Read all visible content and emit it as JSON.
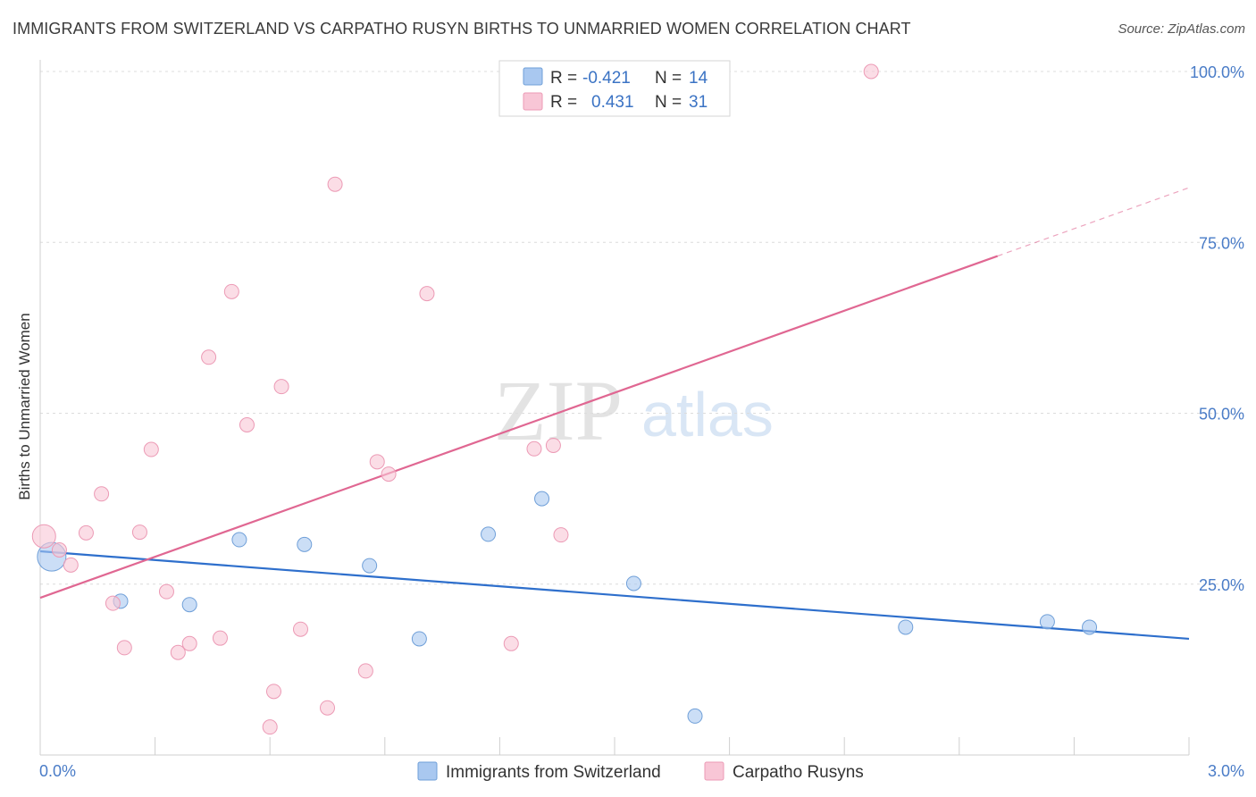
{
  "title": "IMMIGRANTS FROM SWITZERLAND VS CARPATHO RUSYN BIRTHS TO UNMARRIED WOMEN CORRELATION CHART",
  "source": "Source: ZipAtlas.com",
  "watermark": {
    "zip": "ZIP",
    "atlas": "atlas"
  },
  "legend": {
    "rows": [
      {
        "r_label": "R =",
        "r_value": "-0.421",
        "n_label": "N =",
        "n_value": "14"
      },
      {
        "r_label": "R =",
        "r_value": "0.431",
        "n_label": "N =",
        "n_value": "31"
      }
    ]
  },
  "bottom_legend": [
    "Immigrants from Switzerland",
    "Carpatho Rusyns"
  ],
  "chart_data": {
    "type": "scatter",
    "title": "IMMIGRANTS FROM SWITZERLAND VS CARPATHO RUSYN BIRTHS TO UNMARRIED WOMEN CORRELATION CHART",
    "xlabel": "",
    "ylabel": "Births to Unmarried Women",
    "xlim": [
      0,
      3.0
    ],
    "ylim": [
      0,
      100
    ],
    "x_tick_labels": [
      "0.0%",
      "3.0%"
    ],
    "y_ticks": [
      25,
      50,
      75,
      100
    ],
    "y_tick_labels": [
      "25.0%",
      "50.0%",
      "75.0%",
      "100.0%"
    ],
    "grid": true,
    "legend_position": "top-center",
    "series": [
      {
        "name": "Immigrants from Switzerland",
        "color": "#a9c8f0",
        "stroke": "#6f9fd8",
        "line_color": "#2e6fcc",
        "points": [
          [
            0.03,
            29,
            3
          ],
          [
            0.21,
            22.5,
            1
          ],
          [
            0.39,
            22,
            1
          ],
          [
            0.52,
            31.5,
            1
          ],
          [
            0.69,
            30.8,
            1
          ],
          [
            0.86,
            27.7,
            1
          ],
          [
            0.99,
            17,
            1
          ],
          [
            1.17,
            32.3,
            1
          ],
          [
            1.31,
            37.5,
            1
          ],
          [
            1.55,
            25.1,
            1
          ],
          [
            1.71,
            5.7,
            1
          ],
          [
            2.26,
            18.7,
            1
          ],
          [
            2.63,
            19.5,
            1
          ],
          [
            2.74,
            18.7,
            1
          ]
        ],
        "trend": {
          "x": [
            0.0,
            3.0
          ],
          "y": [
            29.8,
            17.0
          ]
        }
      },
      {
        "name": "Carpatho Rusyns",
        "color": "#f8c6d6",
        "stroke": "#ec9ab5",
        "line_color": "#e06792",
        "points": [
          [
            0.01,
            32,
            2
          ],
          [
            0.05,
            30,
            1
          ],
          [
            0.08,
            27.8,
            1
          ],
          [
            0.12,
            32.5,
            1
          ],
          [
            0.16,
            38.2,
            1
          ],
          [
            0.19,
            22.2,
            1
          ],
          [
            0.22,
            15.7,
            1
          ],
          [
            0.26,
            32.6,
            1
          ],
          [
            0.29,
            44.7,
            1
          ],
          [
            0.33,
            23.9,
            1
          ],
          [
            0.36,
            15,
            1
          ],
          [
            0.39,
            16.3,
            1
          ],
          [
            0.44,
            58.2,
            1
          ],
          [
            0.47,
            17.1,
            1
          ],
          [
            0.5,
            67.8,
            1
          ],
          [
            0.54,
            48.3,
            1
          ],
          [
            0.6,
            4.1,
            1
          ],
          [
            0.61,
            9.3,
            1
          ],
          [
            0.63,
            53.9,
            1
          ],
          [
            0.68,
            18.4,
            1
          ],
          [
            0.75,
            6.9,
            1
          ],
          [
            0.77,
            83.5,
            1
          ],
          [
            0.85,
            12.3,
            1
          ],
          [
            0.88,
            42.9,
            1
          ],
          [
            0.91,
            41.1,
            1
          ],
          [
            1.01,
            67.5,
            1
          ],
          [
            1.23,
            16.3,
            1
          ],
          [
            1.29,
            44.8,
            1
          ],
          [
            1.34,
            45.3,
            1
          ],
          [
            1.36,
            32.2,
            1
          ],
          [
            2.17,
            100,
            1
          ]
        ],
        "trend": {
          "x": [
            0.0,
            2.5
          ],
          "y": [
            23.0,
            73.0
          ]
        },
        "trend_dashed_extension": {
          "x": [
            2.5,
            3.0
          ],
          "y": [
            73.0,
            83.0
          ]
        }
      }
    ]
  }
}
